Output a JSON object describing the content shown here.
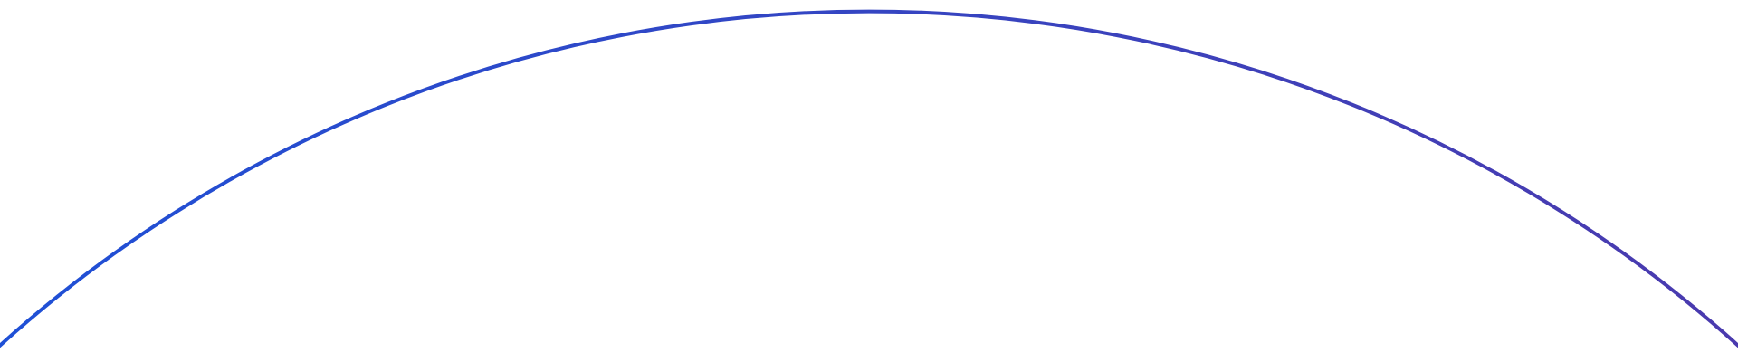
{
  "arc": {
    "color_start": "#1f50d6",
    "color_end": "#4a3aae",
    "background": "#ffffff"
  }
}
